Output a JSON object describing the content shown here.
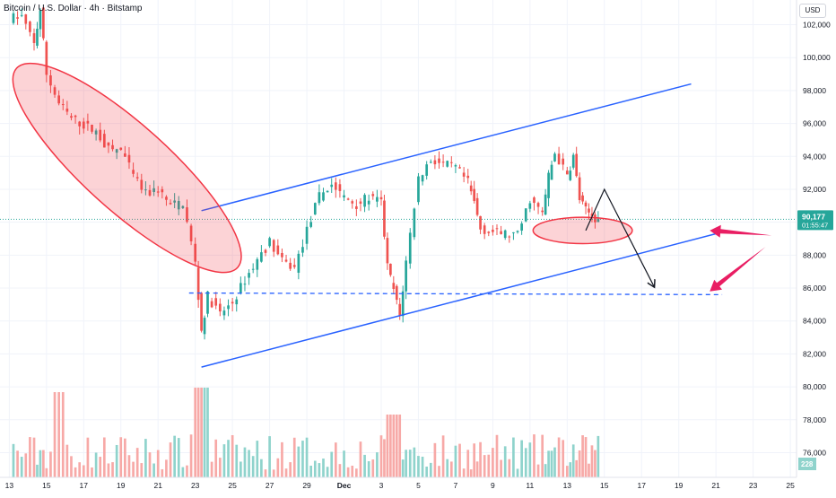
{
  "header": {
    "symbol_title": "Bitcoin / U.S. Dollar · 4h · Bitstamp",
    "currency": "USD"
  },
  "price_tag": {
    "price": "90,177",
    "countdown": "01:55:47"
  },
  "volume_tag": "228",
  "colors": {
    "up": "#26a69a",
    "down": "#ef5350",
    "channel": "#2962ff",
    "ellipse": "#f23645",
    "arrow_pink": "#e91e63",
    "price_line": "#26a69a",
    "volume_up": "#8fd3cc",
    "volume_down": "#f7a9a7"
  },
  "chart_data": {
    "type": "candlestick",
    "yaxis": {
      "range": [
        74500,
        103500
      ],
      "ticks": [
        "76,000",
        "78,000",
        "80,000",
        "82,000",
        "84,000",
        "86,000",
        "88,000",
        "90,000",
        "92,000",
        "94,000",
        "96,000",
        "98,000",
        "100,000",
        "102,000"
      ],
      "tick_values": [
        76000,
        78000,
        80000,
        82000,
        84000,
        86000,
        88000,
        90000,
        92000,
        94000,
        96000,
        98000,
        100000,
        102000
      ]
    },
    "xaxis": {
      "ticks": [
        "13",
        "15",
        "17",
        "19",
        "21",
        "23",
        "25",
        "27",
        "29",
        "Dec",
        "3",
        "5",
        "7",
        "9",
        "11",
        "13",
        "15",
        "17",
        "19",
        "21",
        "23",
        "25"
      ]
    },
    "price_path": [
      {
        "t": 0,
        "p": 102400
      },
      {
        "t": 2,
        "p": 102500
      },
      {
        "t": 4,
        "p": 100800
      },
      {
        "t": 5,
        "p": 102900
      },
      {
        "t": 6,
        "p": 99000
      },
      {
        "t": 8,
        "p": 97200
      },
      {
        "t": 10,
        "p": 96300
      },
      {
        "t": 12,
        "p": 95900
      },
      {
        "t": 14,
        "p": 95500
      },
      {
        "t": 16,
        "p": 94400
      },
      {
        "t": 18,
        "p": 94400
      },
      {
        "t": 20,
        "p": 92800
      },
      {
        "t": 22,
        "p": 91700
      },
      {
        "t": 24,
        "p": 92000
      },
      {
        "t": 26,
        "p": 91000
      },
      {
        "t": 28,
        "p": 91200
      },
      {
        "t": 30,
        "p": 87500
      },
      {
        "t": 31,
        "p": 83400
      },
      {
        "t": 32,
        "p": 85500
      },
      {
        "t": 34,
        "p": 84400
      },
      {
        "t": 36,
        "p": 85100
      },
      {
        "t": 38,
        "p": 86500
      },
      {
        "t": 40,
        "p": 87700
      },
      {
        "t": 42,
        "p": 88800
      },
      {
        "t": 44,
        "p": 87600
      },
      {
        "t": 46,
        "p": 87200
      },
      {
        "t": 48,
        "p": 89500
      },
      {
        "t": 50,
        "p": 91600
      },
      {
        "t": 52,
        "p": 92300
      },
      {
        "t": 54,
        "p": 91500
      },
      {
        "t": 56,
        "p": 91100
      },
      {
        "t": 58,
        "p": 91500
      },
      {
        "t": 60,
        "p": 91200
      },
      {
        "t": 61,
        "p": 87300
      },
      {
        "t": 62,
        "p": 85900
      },
      {
        "t": 63,
        "p": 84300
      },
      {
        "t": 64,
        "p": 87600
      },
      {
        "t": 66,
        "p": 92700
      },
      {
        "t": 68,
        "p": 93800
      },
      {
        "t": 70,
        "p": 93500
      },
      {
        "t": 72,
        "p": 93300
      },
      {
        "t": 74,
        "p": 92400
      },
      {
        "t": 75,
        "p": 91200
      },
      {
        "t": 76,
        "p": 89600
      },
      {
        "t": 78,
        "p": 89400
      },
      {
        "t": 80,
        "p": 89300
      },
      {
        "t": 82,
        "p": 89200
      },
      {
        "t": 84,
        "p": 91400
      },
      {
        "t": 86,
        "p": 90500
      },
      {
        "t": 87,
        "p": 92800
      },
      {
        "t": 88,
        "p": 94200
      },
      {
        "t": 90,
        "p": 92800
      },
      {
        "t": 91,
        "p": 94000
      },
      {
        "t": 92,
        "p": 91400
      },
      {
        "t": 93,
        "p": 90700
      },
      {
        "t": 94,
        "p": 90400
      },
      {
        "t": 95,
        "p": 90180
      }
    ],
    "annotations": {
      "channel_upper": [
        {
          "t": 31,
          "p": 90700
        },
        {
          "t": 110,
          "p": 98400
        }
      ],
      "channel_lower": [
        {
          "t": 31,
          "p": 81200
        },
        {
          "t": 114,
          "p": 89300
        }
      ],
      "support_dashed": [
        {
          "t": 29,
          "p": 85700
        },
        {
          "t": 115,
          "p": 85600
        }
      ],
      "price_line": 90177,
      "ellipses": [
        {
          "center": {
            "t": 19,
            "p": 93300
          },
          "rx_t": 24,
          "ry_p": 2600,
          "angle_deg": 42
        },
        {
          "center": {
            "t": 92.5,
            "p": 89500
          },
          "rx_t": 8,
          "ry_p": 800,
          "angle_deg": 0
        }
      ],
      "projection": [
        {
          "t": 93,
          "p": 89500
        },
        {
          "t": 96,
          "p": 92000
        },
        {
          "t": 104,
          "p": 86100
        }
      ],
      "pink_arrows": [
        {
          "from": {
            "t": 123,
            "p": 89200
          },
          "to": {
            "t": 113,
            "p": 89500
          }
        },
        {
          "from": {
            "t": 122,
            "p": 88500
          },
          "to": {
            "t": 113,
            "p": 85800
          }
        }
      ]
    }
  }
}
